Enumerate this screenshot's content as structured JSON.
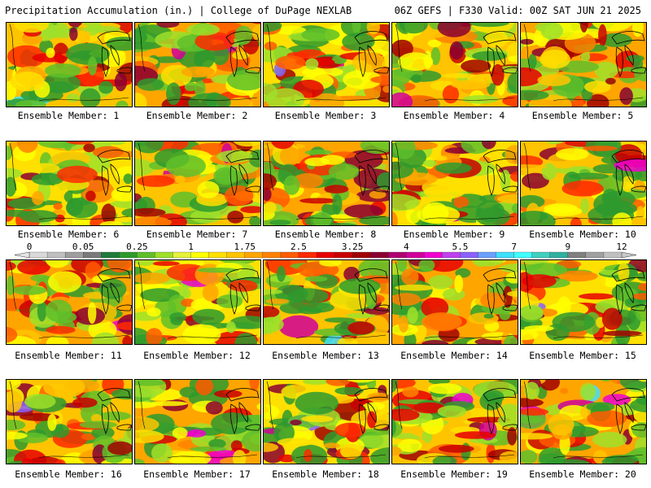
{
  "header": {
    "left": "Precipitation Accumulation (in.) | College of DuPage NEXLAB",
    "right": "06Z GEFS | F330 Valid: 00Z SAT JUN 21 2025"
  },
  "panel_label_prefix": "Ensemble Member: ",
  "members": [
    1,
    2,
    3,
    4,
    5,
    6,
    7,
    8,
    9,
    10,
    11,
    12,
    13,
    14,
    15,
    16,
    17,
    18,
    19,
    20
  ],
  "colorbar": {
    "tick_labels": [
      "0",
      "0.05",
      "0.25",
      "1",
      "1.75",
      "2.5",
      "3.25",
      "4",
      "5.5",
      "7",
      "9",
      "12"
    ],
    "colors": [
      "#d9d9d9",
      "#bfbfbf",
      "#9e9e9e",
      "#7a7a7a",
      "#1f7a3c",
      "#2e9a2e",
      "#5fbf2a",
      "#9fe02a",
      "#e6f23a",
      "#ffff00",
      "#ffe000",
      "#ffc400",
      "#ffa500",
      "#ff8200",
      "#ff5a00",
      "#ff2a00",
      "#e60000",
      "#c80000",
      "#a00000",
      "#8a0030",
      "#b00070",
      "#d0009a",
      "#f000d0",
      "#c040f0",
      "#8a60ff",
      "#6aa0ff",
      "#40e0ff",
      "#40ffff",
      "#40d0c0",
      "#30b0a0",
      "#808080",
      "#a0a0a0",
      "#c0c0c0"
    ]
  }
}
